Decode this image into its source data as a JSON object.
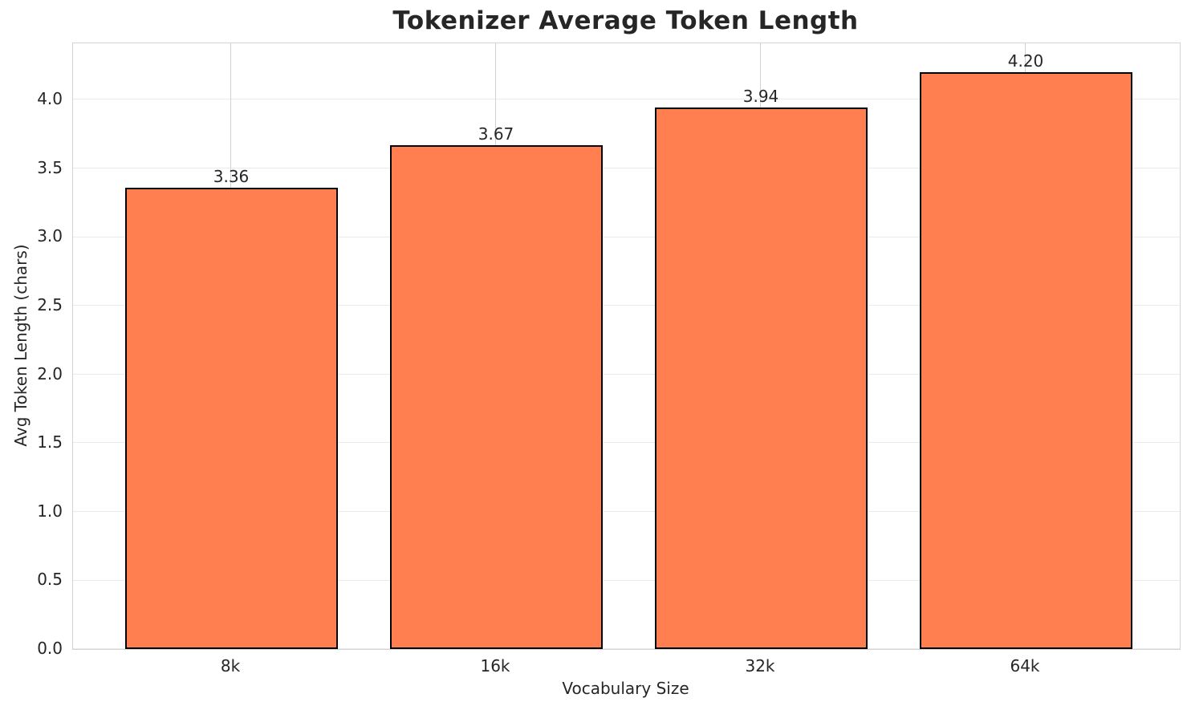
{
  "chart_data": {
    "type": "bar",
    "title": "Tokenizer Average Token Length",
    "xlabel": "Vocabulary Size",
    "ylabel": "Avg Token Length (chars)",
    "categories": [
      "8k",
      "16k",
      "32k",
      "64k"
    ],
    "values": [
      3.36,
      3.67,
      3.94,
      4.2
    ],
    "value_labels": [
      "3.36",
      "3.67",
      "3.94",
      "4.20"
    ],
    "yticks": [
      0.0,
      0.5,
      1.0,
      1.5,
      2.0,
      2.5,
      3.0,
      3.5,
      4.0
    ],
    "ytick_labels": [
      "0.0",
      "0.5",
      "1.0",
      "1.5",
      "2.0",
      "2.5",
      "3.0",
      "3.5",
      "4.0"
    ],
    "ylim": [
      0,
      4.41
    ],
    "grid": true,
    "legend": null,
    "colors": {
      "bar_fill": "#FF7F50",
      "bar_edge": "#000000",
      "grid_horizontal": "#ebebeb",
      "grid_vertical": "#d2d2d2",
      "spine": "#d4d4d4",
      "text": "#262626",
      "background": "#ffffff"
    }
  }
}
